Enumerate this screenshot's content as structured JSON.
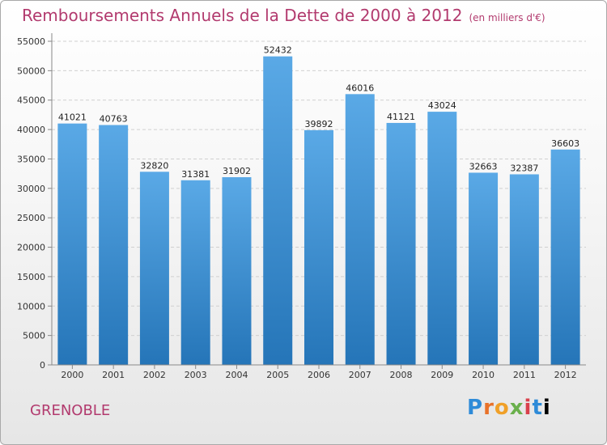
{
  "title": "Remboursements Annuels de la Dette de 2000 à 2012",
  "unit_note": "(en milliers d'€)",
  "city": "GRENOBLE",
  "logo_text": "Proxiti",
  "colors": {
    "bar_top": "#5aa9e6",
    "bar_bottom": "#2575b8",
    "title": "#b23a6e",
    "grid": "#d0d0d0"
  },
  "chart_data": {
    "type": "bar",
    "categories": [
      "2000",
      "2001",
      "2002",
      "2003",
      "2004",
      "2005",
      "2006",
      "2007",
      "2008",
      "2009",
      "2010",
      "2011",
      "2012"
    ],
    "values": [
      41021,
      40763,
      32820,
      31381,
      31902,
      52432,
      39892,
      46016,
      41121,
      43024,
      32663,
      32387,
      36603
    ],
    "data_labels": [
      "41021",
      "40763",
      "32820",
      "31381",
      "31902",
      "52432",
      "39892",
      "46016",
      "41121",
      "43024",
      "32663",
      "32387",
      "36603"
    ],
    "yticks": [
      0,
      5000,
      10000,
      15000,
      20000,
      25000,
      30000,
      35000,
      40000,
      45000,
      50000,
      55000
    ],
    "ytick_labels": [
      "0",
      "5000",
      "10000",
      "15000",
      "20000",
      "25000",
      "30000",
      "35000",
      "40000",
      "45000",
      "50000",
      "55000"
    ],
    "ylim": [
      0,
      55000
    ],
    "grid": true,
    "legend": "none"
  }
}
